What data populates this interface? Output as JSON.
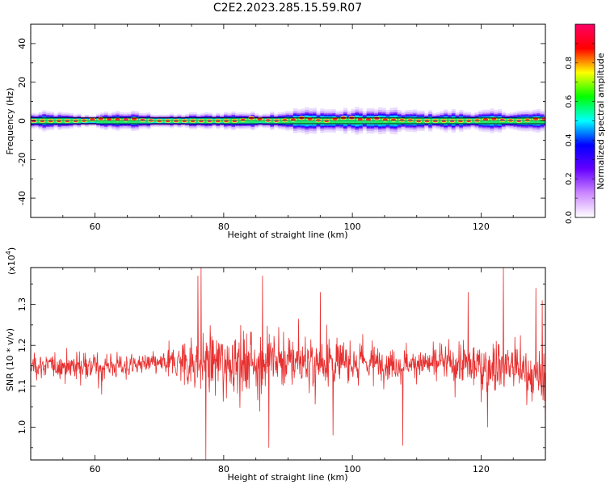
{
  "figure": {
    "title": "C2E2.2023.285.15.59.R07"
  },
  "chart_data": [
    {
      "type": "heatmap",
      "xlabel": "Height of straight line (km)",
      "ylabel": "Frequency (Hz)",
      "xlim": [
        50,
        130
      ],
      "ylim": [
        -50,
        50
      ],
      "x_ticks": [
        60,
        80,
        100,
        120
      ],
      "y_ticks": [
        -40,
        -20,
        0,
        20,
        40
      ],
      "band_center_hz": 0,
      "band_edges_hz": [
        -1.5,
        1.5
      ],
      "band_halfwidth_hz": [
        [
          50,
          2.5
        ],
        [
          52,
          3
        ],
        [
          55,
          2.5
        ],
        [
          58,
          2
        ],
        [
          60,
          2
        ],
        [
          62,
          3
        ],
        [
          65,
          3
        ],
        [
          68,
          2.5
        ],
        [
          72,
          2
        ],
        [
          75,
          2.5
        ],
        [
          78,
          2.5
        ],
        [
          82,
          3
        ],
        [
          85,
          2.5
        ],
        [
          88,
          3
        ],
        [
          92,
          4
        ],
        [
          95,
          4
        ],
        [
          98,
          3.5
        ],
        [
          100,
          4
        ],
        [
          105,
          4
        ],
        [
          108,
          3.5
        ],
        [
          112,
          3
        ],
        [
          115,
          3.5
        ],
        [
          118,
          3
        ],
        [
          122,
          3.5
        ],
        [
          125,
          3
        ],
        [
          128,
          3.5
        ],
        [
          130,
          3
        ]
      ],
      "peak_offsets_hz": [
        [
          52,
          0
        ],
        [
          58,
          0
        ],
        [
          62,
          1.5
        ],
        [
          66,
          1
        ],
        [
          70,
          0
        ],
        [
          76,
          0
        ],
        [
          82,
          0
        ],
        [
          84,
          1.5
        ],
        [
          88,
          0
        ],
        [
          92,
          1.5
        ],
        [
          96,
          0
        ],
        [
          98,
          1.5
        ],
        [
          102,
          1.5
        ],
        [
          106,
          1
        ],
        [
          110,
          0
        ],
        [
          114,
          0
        ],
        [
          118,
          0
        ],
        [
          122,
          1
        ],
        [
          126,
          0
        ],
        [
          128,
          1
        ]
      ],
      "colorbar": {
        "label": "Normalized spectral amplitude",
        "range": [
          0,
          1
        ],
        "ticks": [
          0.0,
          0.2,
          0.4,
          0.6,
          0.8
        ],
        "colors": [
          "#ffffff",
          "#cc88ff",
          "#6600ff",
          "#0000ff",
          "#00ffff",
          "#00ff00",
          "#ffff00",
          "#ff0000",
          "#ff0066"
        ]
      },
      "colors": {
        "band_line": "#000000",
        "center_line": "#22aa55"
      }
    },
    {
      "type": "line",
      "xlabel": "Height of straight line (km)",
      "ylabel": "SNR (10 * v/v)",
      "y_multiplier_label": "(x10",
      "y_multiplier_exponent": "4",
      "y_multiplier_close": ")",
      "xlim": [
        50,
        130
      ],
      "ylim": [
        0.92,
        1.39
      ],
      "x_ticks": [
        60,
        80,
        100,
        120
      ],
      "y_ticks": [
        1.0,
        1.1,
        1.2,
        1.3
      ],
      "color": "#e83030",
      "envelope": [
        {
          "x": 50,
          "mean": 1.15,
          "spread": 0.035
        },
        {
          "x": 55,
          "mean": 1.15,
          "spread": 0.04
        },
        {
          "x": 60,
          "mean": 1.15,
          "spread": 0.045
        },
        {
          "x": 65,
          "mean": 1.15,
          "spread": 0.035
        },
        {
          "x": 70,
          "mean": 1.155,
          "spread": 0.03
        },
        {
          "x": 74,
          "mean": 1.16,
          "spread": 0.08
        },
        {
          "x": 78,
          "mean": 1.16,
          "spread": 0.1
        },
        {
          "x": 82,
          "mean": 1.165,
          "spread": 0.09
        },
        {
          "x": 86,
          "mean": 1.16,
          "spread": 0.095
        },
        {
          "x": 90,
          "mean": 1.16,
          "spread": 0.085
        },
        {
          "x": 95,
          "mean": 1.16,
          "spread": 0.08
        },
        {
          "x": 100,
          "mean": 1.16,
          "spread": 0.06
        },
        {
          "x": 105,
          "mean": 1.155,
          "spread": 0.05
        },
        {
          "x": 110,
          "mean": 1.155,
          "spread": 0.04
        },
        {
          "x": 115,
          "mean": 1.155,
          "spread": 0.06
        },
        {
          "x": 120,
          "mean": 1.15,
          "spread": 0.08
        },
        {
          "x": 125,
          "mean": 1.15,
          "spread": 0.09
        },
        {
          "x": 130,
          "mean": 1.1,
          "spread": 0.07
        }
      ],
      "spikes": [
        {
          "x": 61,
          "y": 1.08
        },
        {
          "x": 76.5,
          "y": 1.39
        },
        {
          "x": 77.2,
          "y": 0.92
        },
        {
          "x": 76,
          "y": 1.37
        },
        {
          "x": 86,
          "y": 1.37
        },
        {
          "x": 87,
          "y": 0.95
        },
        {
          "x": 95,
          "y": 1.33
        },
        {
          "x": 97,
          "y": 0.98
        },
        {
          "x": 107.8,
          "y": 0.955
        },
        {
          "x": 118,
          "y": 1.33
        },
        {
          "x": 121,
          "y": 1.0
        },
        {
          "x": 123.5,
          "y": 1.39
        },
        {
          "x": 128.5,
          "y": 1.34
        },
        {
          "x": 129.5,
          "y": 1.31
        },
        {
          "x": 130,
          "y": 0.97
        }
      ]
    }
  ]
}
